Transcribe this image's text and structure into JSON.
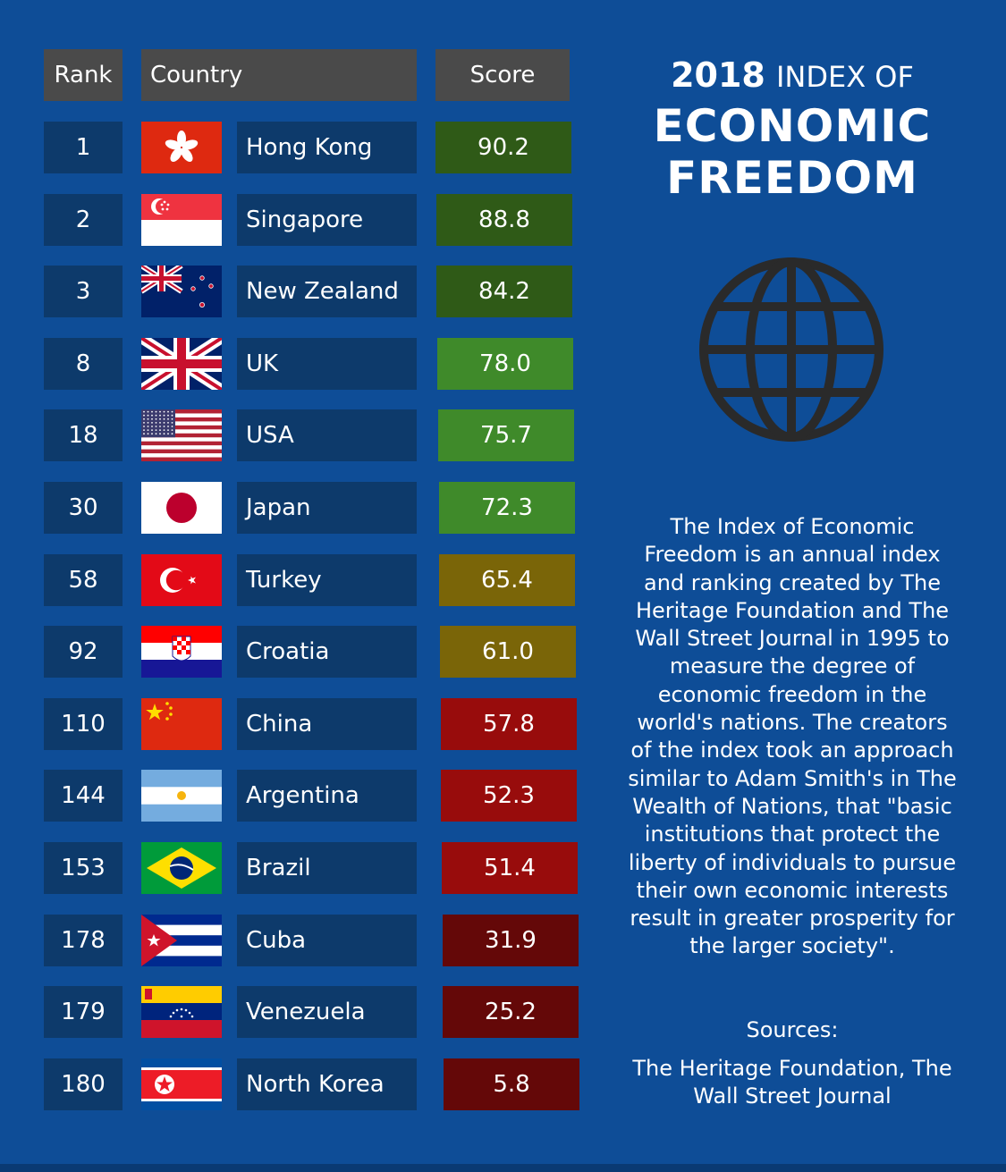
{
  "title": {
    "year": "2018",
    "line1_rest": "INDEX OF",
    "line2": "ECONOMIC",
    "line3": "FREEDOM"
  },
  "description": "The Index of Economic Freedom is an annual index and ranking created by The Heritage Foundation and The Wall Street Journal in 1995 to measure the degree of economic freedom in the world's nations. The creators of the index took an approach similar to Adam Smith's in The Wealth of Nations, that \"basic institutions that protect the liberty of individuals to pursue their own economic interests result in greater prosperity for the larger society\".",
  "sources": {
    "label": "Sources:",
    "text": "The Heritage Foundation, The Wall Street Journal"
  },
  "icons": {
    "globe": "globe-icon"
  },
  "colors": {
    "background": "#0e4d97",
    "cell": "#0d3a6b",
    "header": "#4a4a4a",
    "band_free": "#2f5a17",
    "band_mostly_free": "#3f8a2a",
    "band_moderately_free": "#7a6508",
    "band_mostly_unfree": "#980c0c",
    "band_repressed": "#640808"
  },
  "chart_data": {
    "type": "table",
    "columns": [
      "Rank",
      "Country",
      "Score"
    ],
    "rows": [
      {
        "rank": "1",
        "country": "Hong Kong",
        "flag": "hong-kong-flag",
        "score": "90.2",
        "color": "#2f5a17"
      },
      {
        "rank": "2",
        "country": "Singapore",
        "flag": "singapore-flag",
        "score": "88.8",
        "color": "#2f5a17"
      },
      {
        "rank": "3",
        "country": "New Zealand",
        "flag": "new-zealand-flag",
        "score": "84.2",
        "color": "#2f5a17"
      },
      {
        "rank": "8",
        "country": "UK",
        "flag": "uk-flag",
        "score": "78.0",
        "color": "#3f8a2a"
      },
      {
        "rank": "18",
        "country": "USA",
        "flag": "usa-flag",
        "score": "75.7",
        "color": "#3f8a2a"
      },
      {
        "rank": "30",
        "country": "Japan",
        "flag": "japan-flag",
        "score": "72.3",
        "color": "#3f8a2a"
      },
      {
        "rank": "58",
        "country": "Turkey",
        "flag": "turkey-flag",
        "score": "65.4",
        "color": "#7a6508"
      },
      {
        "rank": "92",
        "country": "Croatia",
        "flag": "croatia-flag",
        "score": "61.0",
        "color": "#7a6508"
      },
      {
        "rank": "110",
        "country": "China",
        "flag": "china-flag",
        "score": "57.8",
        "color": "#980c0c"
      },
      {
        "rank": "144",
        "country": "Argentina",
        "flag": "argentina-flag",
        "score": "52.3",
        "color": "#980c0c"
      },
      {
        "rank": "153",
        "country": "Brazil",
        "flag": "brazil-flag",
        "score": "51.4",
        "color": "#980c0c"
      },
      {
        "rank": "178",
        "country": "Cuba",
        "flag": "cuba-flag",
        "score": "31.9",
        "color": "#640808"
      },
      {
        "rank": "179",
        "country": "Venezuela",
        "flag": "venezuela-flag",
        "score": "25.2",
        "color": "#640808"
      },
      {
        "rank": "180",
        "country": "North Korea",
        "flag": "north-korea-flag",
        "score": "5.8",
        "color": "#640808"
      }
    ]
  }
}
